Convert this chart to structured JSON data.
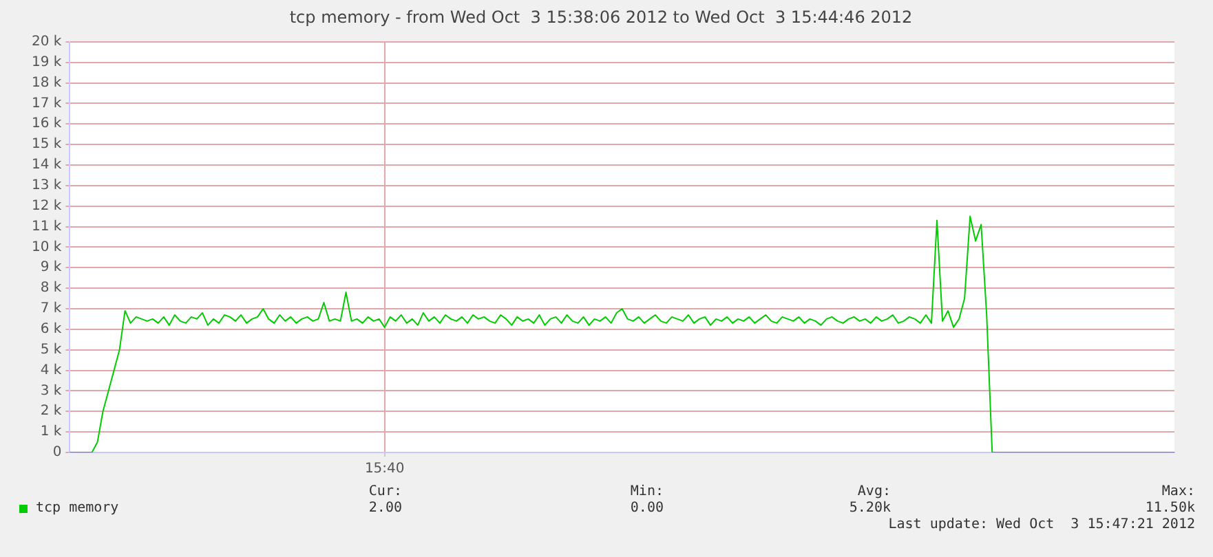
{
  "chart_data": {
    "type": "line",
    "title": "tcp memory - from Wed Oct  3 15:38:06 2012 to Wed Oct  3 15:44:46 2012",
    "categories": [
      null,
      null,
      null,
      null,
      null,
      null,
      null,
      null,
      null,
      null,
      null,
      null,
      null,
      null,
      null,
      null,
      null,
      null,
      null,
      null,
      null,
      null,
      null,
      null,
      null,
      null,
      null,
      null,
      null,
      null,
      null,
      null,
      null,
      null,
      null,
      null,
      null,
      null,
      null,
      null,
      null,
      null,
      null,
      null,
      null,
      null,
      null,
      null,
      null,
      null,
      null,
      null,
      null,
      null,
      null,
      null,
      null,
      "15:40",
      null,
      null,
      null,
      null,
      null,
      null,
      null,
      null,
      null,
      null,
      null,
      null,
      null,
      null,
      null,
      null,
      null,
      null,
      null,
      null,
      null,
      null,
      null,
      null,
      null,
      null,
      null,
      null,
      null,
      null,
      null,
      null,
      null,
      null,
      null,
      null,
      null,
      null,
      null,
      null,
      null,
      null,
      null,
      null,
      null,
      null,
      null,
      null,
      null,
      null,
      null,
      null,
      null,
      null,
      null,
      null,
      null,
      null,
      null,
      null,
      null,
      null,
      null,
      null,
      null,
      null,
      null,
      null,
      null,
      null,
      null,
      null,
      null,
      null,
      null,
      null,
      null,
      null,
      null,
      null,
      null,
      null,
      null,
      null,
      null,
      null,
      null,
      null,
      null,
      null,
      null,
      null,
      null,
      null,
      null,
      null,
      null,
      null,
      null,
      null,
      null,
      null,
      null,
      null,
      null,
      null,
      null,
      null,
      null,
      null,
      null,
      null,
      null,
      null,
      null,
      null,
      null,
      null,
      null,
      null,
      null,
      null,
      null,
      null,
      null,
      null,
      null,
      null,
      null,
      null,
      null,
      null,
      null,
      null,
      null,
      null,
      null,
      null,
      null,
      null,
      null,
      null,
      null
    ],
    "series": [
      {
        "name": "tcp memory",
        "color": "#00cc00",
        "values": [
          0,
          0,
          0,
          0,
          0,
          500,
          2000,
          3000,
          4000,
          5000,
          6900,
          6300,
          6600,
          6500,
          6400,
          6500,
          6300,
          6600,
          6200,
          6700,
          6400,
          6300,
          6600,
          6500,
          6800,
          6200,
          6500,
          6300,
          6700,
          6600,
          6400,
          6700,
          6300,
          6500,
          6600,
          7000,
          6500,
          6300,
          6700,
          6400,
          6600,
          6300,
          6500,
          6600,
          6400,
          6500,
          7300,
          6400,
          6500,
          6400,
          7800,
          6400,
          6500,
          6300,
          6600,
          6400,
          6500,
          6100,
          6600,
          6400,
          6700,
          6300,
          6500,
          6200,
          6800,
          6400,
          6600,
          6300,
          6700,
          6500,
          6400,
          6600,
          6300,
          6700,
          6500,
          6600,
          6400,
          6300,
          6700,
          6500,
          6200,
          6600,
          6400,
          6500,
          6300,
          6700,
          6200,
          6500,
          6600,
          6300,
          6700,
          6400,
          6300,
          6600,
          6200,
          6500,
          6400,
          6600,
          6300,
          6800,
          7000,
          6500,
          6400,
          6600,
          6300,
          6500,
          6700,
          6400,
          6300,
          6600,
          6500,
          6400,
          6700,
          6300,
          6500,
          6600,
          6200,
          6500,
          6400,
          6600,
          6300,
          6500,
          6400,
          6600,
          6300,
          6500,
          6700,
          6400,
          6300,
          6600,
          6500,
          6400,
          6600,
          6300,
          6500,
          6400,
          6200,
          6500,
          6600,
          6400,
          6300,
          6500,
          6600,
          6400,
          6500,
          6300,
          6600,
          6400,
          6500,
          6700,
          6300,
          6400,
          6600,
          6500,
          6300,
          6700,
          6300,
          11300,
          6400,
          6900,
          6100,
          6500,
          7500,
          11500,
          10300,
          11100,
          6700,
          0,
          0,
          0,
          0,
          0,
          0,
          0,
          0,
          0,
          0,
          0,
          0,
          0,
          0,
          0,
          0,
          0,
          0,
          0,
          0,
          0,
          0,
          0,
          0,
          0,
          0,
          0,
          0,
          0,
          0,
          0,
          0,
          0,
          0
        ]
      }
    ],
    "ylim": [
      0,
      20000
    ],
    "yticks": [
      0,
      {
        "value": 1000,
        "label": "1 k"
      },
      {
        "value": 2000,
        "label": "2 k"
      },
      {
        "value": 3000,
        "label": "3 k"
      },
      {
        "value": 4000,
        "label": "4 k"
      },
      {
        "value": 5000,
        "label": "5 k"
      },
      {
        "value": 6000,
        "label": "6 k"
      },
      {
        "value": 7000,
        "label": "7 k"
      },
      {
        "value": 8000,
        "label": "8 k"
      },
      {
        "value": 9000,
        "label": "9 k"
      },
      {
        "value": 10000,
        "label": "10 k"
      },
      {
        "value": 11000,
        "label": "11 k"
      },
      {
        "value": 12000,
        "label": "12 k"
      },
      {
        "value": 13000,
        "label": "13 k"
      },
      {
        "value": 14000,
        "label": "14 k"
      },
      {
        "value": 15000,
        "label": "15 k"
      },
      {
        "value": 16000,
        "label": "16 k"
      },
      {
        "value": 17000,
        "label": "17 k"
      },
      {
        "value": 18000,
        "label": "18 k"
      },
      {
        "value": 19000,
        "label": "19 k"
      },
      {
        "value": 20000,
        "label": "20 k"
      }
    ],
    "grid": true,
    "legend": "bottom left",
    "marker": "none",
    "line_style": "solid",
    "annotations": [
      "Cur:",
      "2.00",
      "Min:",
      "0.00",
      "Avg:",
      "5.20k",
      "Max:",
      "11.50k",
      "Last update: Wed Oct  3 15:47:21 2012"
    ]
  }
}
